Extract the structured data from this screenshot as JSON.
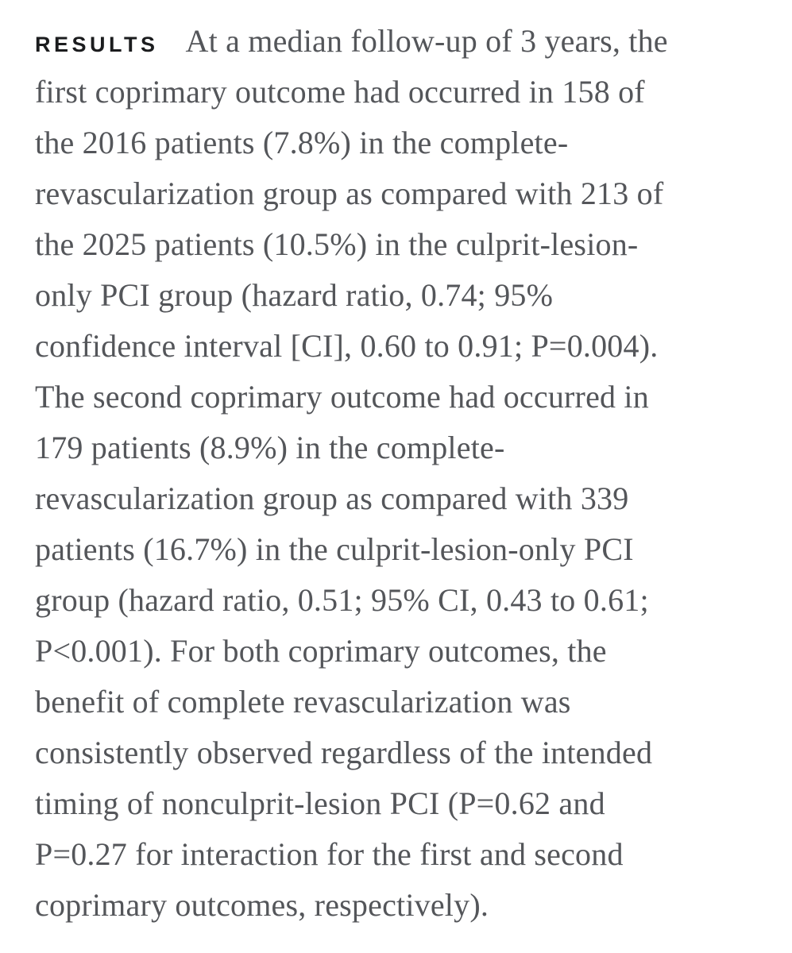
{
  "page": {
    "background_color": "#ffffff",
    "text_color": "#54565a",
    "label_color": "#1b1c1e"
  },
  "results_section": {
    "label": "RESULTS",
    "lines": [
      "At a median follow-up of 3 years, the",
      "first coprimary outcome had occurred in 158 of",
      "the 2016 patients (7.8%) in the complete-",
      "revascularization group as compared with 213 of",
      "the 2025 patients (10.5%) in the culprit-lesion-",
      "only PCI group (hazard ratio, 0.74; 95%",
      "confidence interval [CI], 0.60 to 0.91; P=0.004).",
      "The second coprimary outcome had occurred in",
      "179 patients (8.9%) in the complete-",
      "revascularization group as compared with 339",
      "patients (16.7%) in the culprit-lesion-only PCI",
      "group (hazard ratio, 0.51; 95% CI, 0.43 to 0.61;",
      "P<0.001). For both coprimary outcomes, the",
      "benefit of complete revascularization was",
      "consistently observed regardless of the intended",
      "timing of nonculprit-lesion PCI (P=0.62 and",
      "P=0.27 for interaction for the first and second",
      "coprimary outcomes, respectively)."
    ]
  }
}
